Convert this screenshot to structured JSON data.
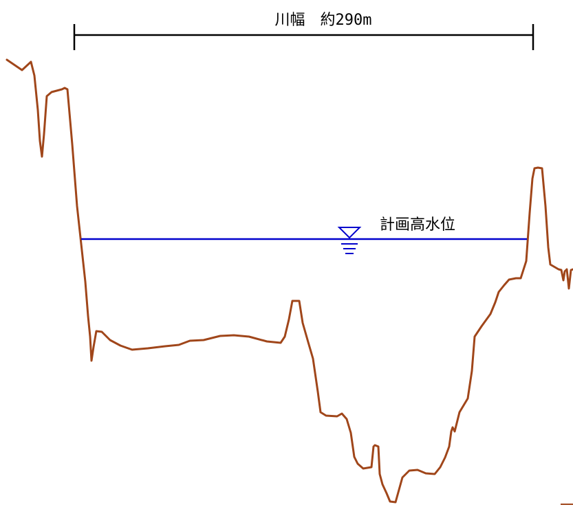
{
  "diagram": {
    "river_width_label": "川幅　約290m",
    "water_level_label": "計画高水位"
  },
  "colors": {
    "ground_profile": "#a0461a",
    "water_level": "#0000cc",
    "dimension": "#000000",
    "background": "#ffffff"
  }
}
